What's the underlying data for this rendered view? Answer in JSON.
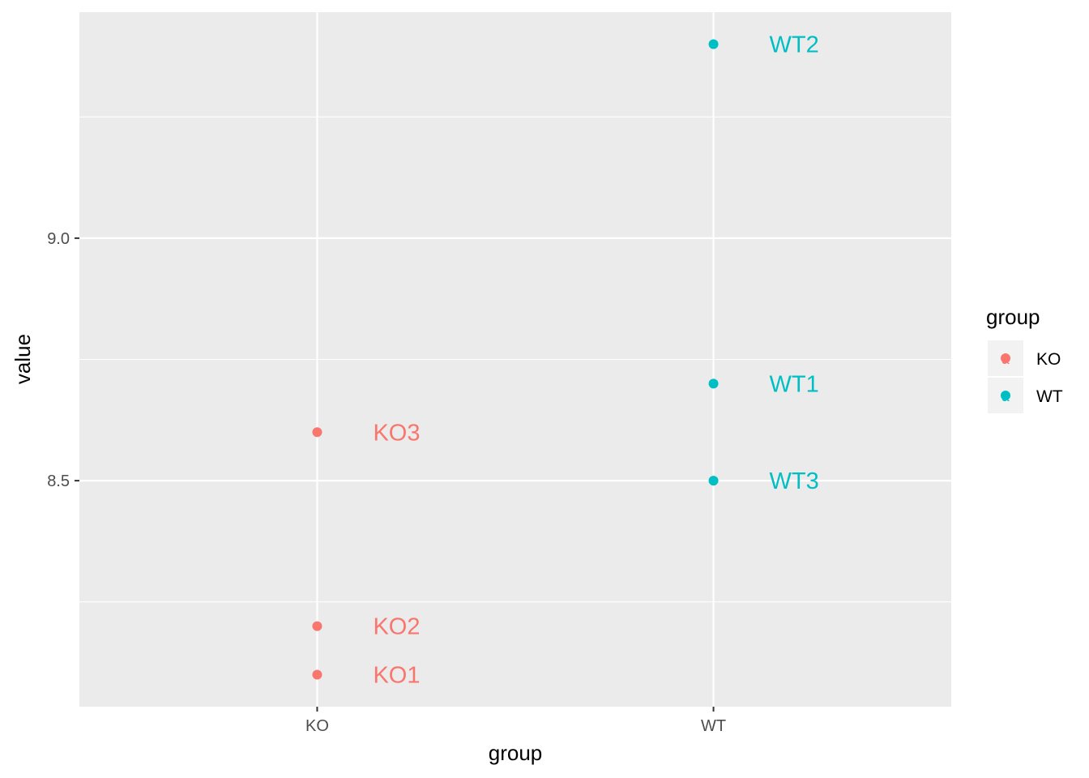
{
  "chart_data": {
    "type": "scatter",
    "title": "",
    "xlabel": "group",
    "ylabel": "value",
    "categories": [
      "KO",
      "WT"
    ],
    "ylim": [
      8.034,
      9.466
    ],
    "yticks": [
      8.5,
      9.0
    ],
    "ytick_labels": [
      "8.5",
      "9.0"
    ],
    "y_minor_gridlines": [
      8.25,
      8.75,
      9.25
    ],
    "grid": true,
    "panel_background": "#ebebeb",
    "legend": {
      "title": "group",
      "placement": "right",
      "entries": [
        {
          "label": "KO",
          "color": "#F8766D"
        },
        {
          "label": "WT",
          "color": "#00BFC4"
        }
      ]
    },
    "points": [
      {
        "group": "KO",
        "y": 8.1,
        "label": "KO1"
      },
      {
        "group": "KO",
        "y": 8.2,
        "label": "KO2"
      },
      {
        "group": "KO",
        "y": 8.6,
        "label": "KO3"
      },
      {
        "group": "WT",
        "y": 8.7,
        "label": "WT1"
      },
      {
        "group": "WT",
        "y": 9.4,
        "label": "WT2"
      },
      {
        "group": "WT",
        "y": 8.5,
        "label": "WT3"
      }
    ]
  }
}
